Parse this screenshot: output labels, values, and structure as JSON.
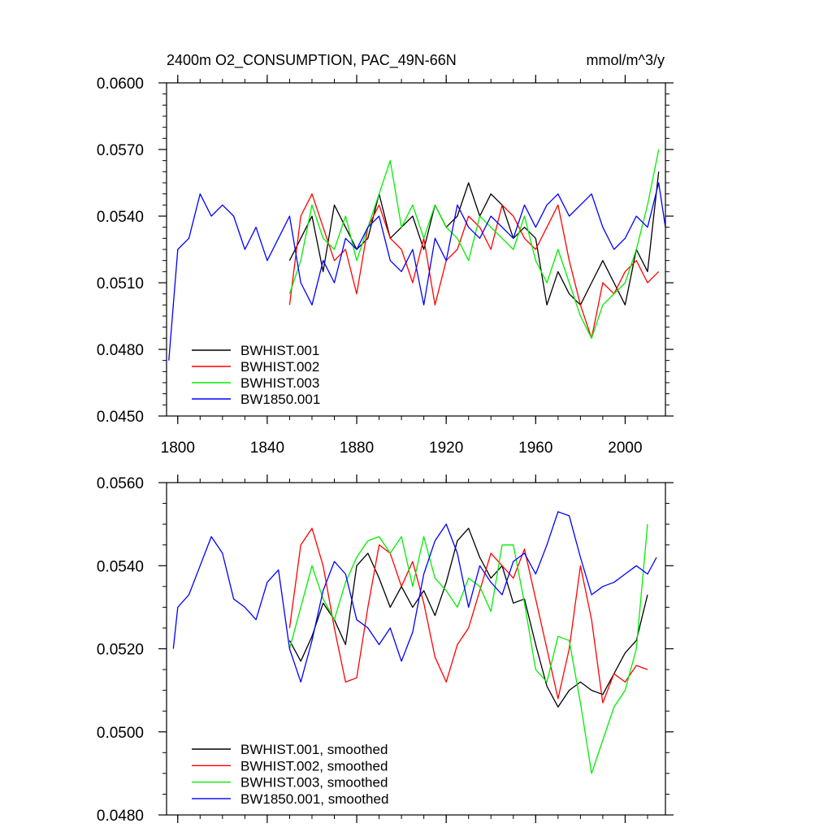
{
  "chart_data": [
    {
      "type": "line",
      "title": "2400m O2_CONSUMPTION, PAC_49N-66N",
      "units": "mmol/m^3/y",
      "xlim": [
        1795,
        2018
      ],
      "ylim": [
        0.045,
        0.06
      ],
      "xticks": [
        1800,
        1840,
        1880,
        1920,
        1960,
        2000
      ],
      "yticks": [
        0.045,
        0.048,
        0.051,
        0.054,
        0.057,
        0.06
      ],
      "ytick_labels": [
        "0.0450",
        "0.0480",
        "0.0510",
        "0.0540",
        "0.0570",
        "0.0600"
      ],
      "legend_position": "bottom-left",
      "series": [
        {
          "name": "BWHIST.001",
          "color": "#000000",
          "x": [
            1850,
            1855,
            1860,
            1865,
            1870,
            1875,
            1880,
            1885,
            1890,
            1895,
            1900,
            1905,
            1910,
            1915,
            1920,
            1925,
            1930,
            1935,
            1940,
            1945,
            1950,
            1955,
            1960,
            1965,
            1970,
            1975,
            1980,
            1985,
            1990,
            1995,
            2000,
            2005,
            2010,
            2015
          ],
          "y": [
            0.052,
            0.053,
            0.054,
            0.0515,
            0.0545,
            0.0535,
            0.0525,
            0.053,
            0.055,
            0.053,
            0.0535,
            0.054,
            0.0525,
            0.0545,
            0.0535,
            0.054,
            0.0555,
            0.054,
            0.055,
            0.0545,
            0.053,
            0.0535,
            0.053,
            0.05,
            0.0515,
            0.0505,
            0.05,
            0.051,
            0.052,
            0.051,
            0.05,
            0.0525,
            0.0515,
            0.056
          ]
        },
        {
          "name": "BWHIST.002",
          "color": "#ff0000",
          "x": [
            1850,
            1855,
            1860,
            1865,
            1870,
            1875,
            1880,
            1885,
            1890,
            1895,
            1900,
            1905,
            1910,
            1915,
            1920,
            1925,
            1930,
            1935,
            1940,
            1945,
            1950,
            1955,
            1960,
            1965,
            1970,
            1975,
            1980,
            1985,
            1990,
            1995,
            2000,
            2005,
            2010,
            2015
          ],
          "y": [
            0.05,
            0.054,
            0.055,
            0.0535,
            0.052,
            0.0525,
            0.0505,
            0.0535,
            0.0545,
            0.053,
            0.0525,
            0.051,
            0.053,
            0.05,
            0.052,
            0.0525,
            0.054,
            0.0535,
            0.0525,
            0.0545,
            0.054,
            0.053,
            0.0525,
            0.0535,
            0.0545,
            0.052,
            0.05,
            0.0485,
            0.051,
            0.0505,
            0.0515,
            0.052,
            0.051,
            0.0515
          ]
        },
        {
          "name": "BWHIST.003",
          "color": "#00ee00",
          "x": [
            1850,
            1855,
            1860,
            1865,
            1870,
            1875,
            1880,
            1885,
            1890,
            1895,
            1900,
            1905,
            1910,
            1915,
            1920,
            1925,
            1930,
            1935,
            1940,
            1945,
            1950,
            1955,
            1960,
            1965,
            1970,
            1975,
            1980,
            1985,
            1990,
            1995,
            2000,
            2005,
            2010,
            2015
          ],
          "y": [
            0.0505,
            0.052,
            0.0545,
            0.053,
            0.0525,
            0.054,
            0.052,
            0.0535,
            0.055,
            0.0565,
            0.0535,
            0.0545,
            0.053,
            0.0545,
            0.0535,
            0.053,
            0.052,
            0.054,
            0.0535,
            0.053,
            0.0525,
            0.054,
            0.052,
            0.051,
            0.0525,
            0.051,
            0.0495,
            0.0485,
            0.05,
            0.0505,
            0.051,
            0.0525,
            0.0545,
            0.057
          ]
        },
        {
          "name": "BW1850.001",
          "color": "#0000ff",
          "x": [
            1796,
            1800,
            1805,
            1810,
            1815,
            1820,
            1825,
            1830,
            1835,
            1840,
            1845,
            1850,
            1855,
            1860,
            1865,
            1870,
            1875,
            1880,
            1885,
            1890,
            1895,
            1900,
            1905,
            1910,
            1915,
            1920,
            1925,
            1930,
            1935,
            1940,
            1945,
            1950,
            1955,
            1960,
            1965,
            1970,
            1975,
            1980,
            1985,
            1990,
            1995,
            2000,
            2005,
            2010,
            2015,
            2018
          ],
          "y": [
            0.0475,
            0.0525,
            0.053,
            0.055,
            0.054,
            0.0545,
            0.054,
            0.0525,
            0.0535,
            0.052,
            0.053,
            0.054,
            0.051,
            0.05,
            0.052,
            0.051,
            0.053,
            0.0525,
            0.0535,
            0.054,
            0.052,
            0.0515,
            0.0525,
            0.05,
            0.053,
            0.052,
            0.0545,
            0.0535,
            0.053,
            0.054,
            0.0535,
            0.053,
            0.0545,
            0.0535,
            0.0545,
            0.055,
            0.054,
            0.0545,
            0.055,
            0.0535,
            0.0525,
            0.053,
            0.054,
            0.0535,
            0.0555,
            0.0535
          ]
        }
      ]
    },
    {
      "type": "line",
      "xlim": [
        1795,
        2018
      ],
      "ylim": [
        0.048,
        0.056
      ],
      "xticks": [
        1800,
        1840,
        1880,
        1920,
        1960,
        2000
      ],
      "yticks": [
        0.048,
        0.05,
        0.052,
        0.054,
        0.056
      ],
      "ytick_labels": [
        "0.0480",
        "0.0500",
        "0.0520",
        "0.0540",
        "0.0560"
      ],
      "legend_position": "bottom-left",
      "series": [
        {
          "name": "BWHIST.001, smoothed",
          "color": "#000000",
          "x": [
            1850,
            1855,
            1860,
            1865,
            1870,
            1875,
            1880,
            1885,
            1890,
            1895,
            1900,
            1905,
            1910,
            1915,
            1920,
            1925,
            1930,
            1935,
            1940,
            1945,
            1950,
            1955,
            1960,
            1965,
            1970,
            1975,
            1980,
            1985,
            1990,
            1995,
            2000,
            2005,
            2010
          ],
          "y": [
            0.0522,
            0.0517,
            0.0523,
            0.0531,
            0.0527,
            0.0521,
            0.054,
            0.0543,
            0.0537,
            0.053,
            0.0535,
            0.053,
            0.0534,
            0.0528,
            0.0536,
            0.0546,
            0.0549,
            0.0542,
            0.0537,
            0.054,
            0.0531,
            0.0532,
            0.0521,
            0.0511,
            0.0506,
            0.051,
            0.0512,
            0.051,
            0.0509,
            0.0514,
            0.0519,
            0.0522,
            0.0533
          ]
        },
        {
          "name": "BWHIST.002, smoothed",
          "color": "#ff0000",
          "x": [
            1850,
            1855,
            1860,
            1865,
            1870,
            1875,
            1880,
            1885,
            1890,
            1895,
            1900,
            1905,
            1910,
            1915,
            1920,
            1925,
            1930,
            1935,
            1940,
            1945,
            1950,
            1955,
            1960,
            1965,
            1970,
            1975,
            1980,
            1985,
            1990,
            1995,
            2000,
            2005,
            2010
          ],
          "y": [
            0.0525,
            0.0545,
            0.0549,
            0.054,
            0.0525,
            0.0512,
            0.0513,
            0.053,
            0.0545,
            0.0543,
            0.0535,
            0.0541,
            0.0531,
            0.0518,
            0.0512,
            0.0521,
            0.0525,
            0.0534,
            0.0543,
            0.054,
            0.0537,
            0.0544,
            0.0532,
            0.052,
            0.0508,
            0.052,
            0.054,
            0.0527,
            0.0507,
            0.0514,
            0.0512,
            0.0516,
            0.0515
          ]
        },
        {
          "name": "BWHIST.003, smoothed",
          "color": "#00ee00",
          "x": [
            1850,
            1855,
            1860,
            1865,
            1870,
            1875,
            1880,
            1885,
            1890,
            1895,
            1900,
            1905,
            1910,
            1915,
            1920,
            1925,
            1930,
            1935,
            1940,
            1945,
            1950,
            1955,
            1960,
            1965,
            1970,
            1975,
            1980,
            1985,
            1990,
            1995,
            2000,
            2005,
            2010
          ],
          "y": [
            0.052,
            0.053,
            0.054,
            0.0532,
            0.0527,
            0.0536,
            0.0542,
            0.0546,
            0.0547,
            0.0543,
            0.0547,
            0.0535,
            0.0547,
            0.0537,
            0.0534,
            0.053,
            0.0537,
            0.0535,
            0.0529,
            0.0545,
            0.0545,
            0.0531,
            0.0515,
            0.0512,
            0.0523,
            0.0522,
            0.0507,
            0.049,
            0.0498,
            0.0506,
            0.051,
            0.052,
            0.055
          ]
        },
        {
          "name": "BW1850.001, smoothed",
          "color": "#0000ff",
          "x": [
            1798,
            1800,
            1805,
            1810,
            1815,
            1820,
            1825,
            1830,
            1835,
            1840,
            1845,
            1850,
            1855,
            1860,
            1865,
            1870,
            1875,
            1880,
            1885,
            1890,
            1895,
            1900,
            1905,
            1910,
            1915,
            1920,
            1925,
            1930,
            1935,
            1940,
            1945,
            1950,
            1955,
            1960,
            1965,
            1970,
            1975,
            1980,
            1985,
            1990,
            1995,
            2000,
            2005,
            2010,
            2014
          ],
          "y": [
            0.052,
            0.053,
            0.0533,
            0.054,
            0.0547,
            0.0543,
            0.0532,
            0.053,
            0.0527,
            0.0536,
            0.0539,
            0.052,
            0.0512,
            0.0522,
            0.0534,
            0.0541,
            0.0538,
            0.0527,
            0.0525,
            0.0521,
            0.0525,
            0.0517,
            0.0524,
            0.0538,
            0.0546,
            0.055,
            0.0543,
            0.053,
            0.054,
            0.0536,
            0.0533,
            0.0541,
            0.0543,
            0.0538,
            0.0545,
            0.0553,
            0.0552,
            0.0542,
            0.0533,
            0.0535,
            0.0536,
            0.0538,
            0.054,
            0.0538,
            0.0542
          ]
        }
      ]
    }
  ]
}
